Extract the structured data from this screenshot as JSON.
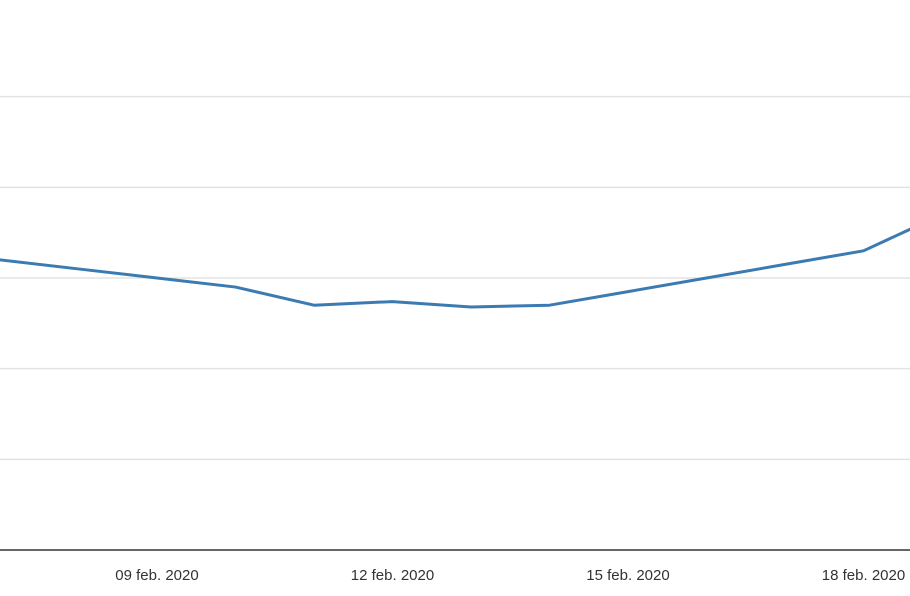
{
  "chart_data": {
    "type": "line",
    "title": "",
    "xlabel": "",
    "ylabel": "",
    "x_tick_labels": [
      "09 feb. 2020",
      "12 feb. 2020",
      "15 feb. 2020",
      "18 feb. 2020"
    ],
    "x": [
      "2020-02-07",
      "2020-02-08",
      "2020-02-09",
      "2020-02-10",
      "2020-02-11",
      "2020-02-12",
      "2020-02-13",
      "2020-02-14",
      "2020-02-15",
      "2020-02-16",
      "2020-02-17",
      "2020-02-18",
      "2020-02-19"
    ],
    "series": [
      {
        "color": "#3b7bb2",
        "values": [
          3.2,
          3.1,
          3.0,
          2.9,
          2.7,
          2.74,
          2.68,
          2.7,
          2.85,
          3.0,
          3.15,
          3.3,
          3.7
        ]
      }
    ],
    "ylim": [
      0,
      6
    ],
    "grid": true,
    "legend": "none"
  }
}
